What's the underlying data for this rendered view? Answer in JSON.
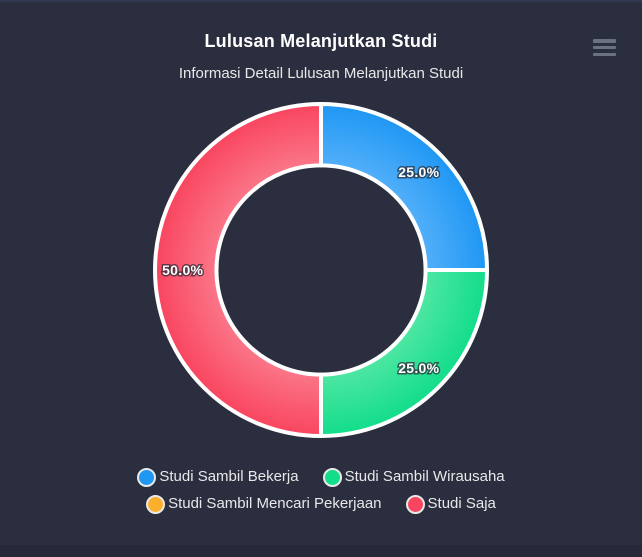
{
  "header": {
    "title": "Lulusan Melanjutkan Studi",
    "subtitle": "Informasi Detail Lulusan Melanjutkan Studi"
  },
  "colors": {
    "background": "#2b2e3f",
    "footer": "#272938",
    "title_text": "#ffffff",
    "subtitle_text": "#e8e8e8",
    "legend_text": "#e8e8e8",
    "slice_border": "#ffffff",
    "hamburger": "#6a7280"
  },
  "chart_data": {
    "type": "pie",
    "variant": "donut",
    "title": "Lulusan Melanjutkan Studi",
    "subtitle": "Informasi Detail Lulusan Melanjutkan Studi",
    "inner_radius_ratio": 0.63,
    "start_angle_deg": 0,
    "legend_position": "bottom",
    "legend_rows": [
      [
        0,
        1
      ],
      [
        2,
        3
      ]
    ],
    "series": [
      {
        "name": "Studi Sambil Bekerja",
        "value": 25.0,
        "label": "25.0%",
        "color": "#1f97f4",
        "color_light": "#56b1fa"
      },
      {
        "name": "Studi Sambil Wirausaha",
        "value": 25.0,
        "label": "25.0%",
        "color": "#12dd8a",
        "color_light": "#53e7a5"
      },
      {
        "name": "Studi Sambil Mencari Pekerjaan",
        "value": 0.0,
        "label": "",
        "color": "#fbb02b",
        "color_light": "#fcc65d"
      },
      {
        "name": "Studi Saja",
        "value": 50.0,
        "label": "50.0%",
        "color": "#f9455f",
        "color_light": "#fb7a8c"
      }
    ]
  }
}
